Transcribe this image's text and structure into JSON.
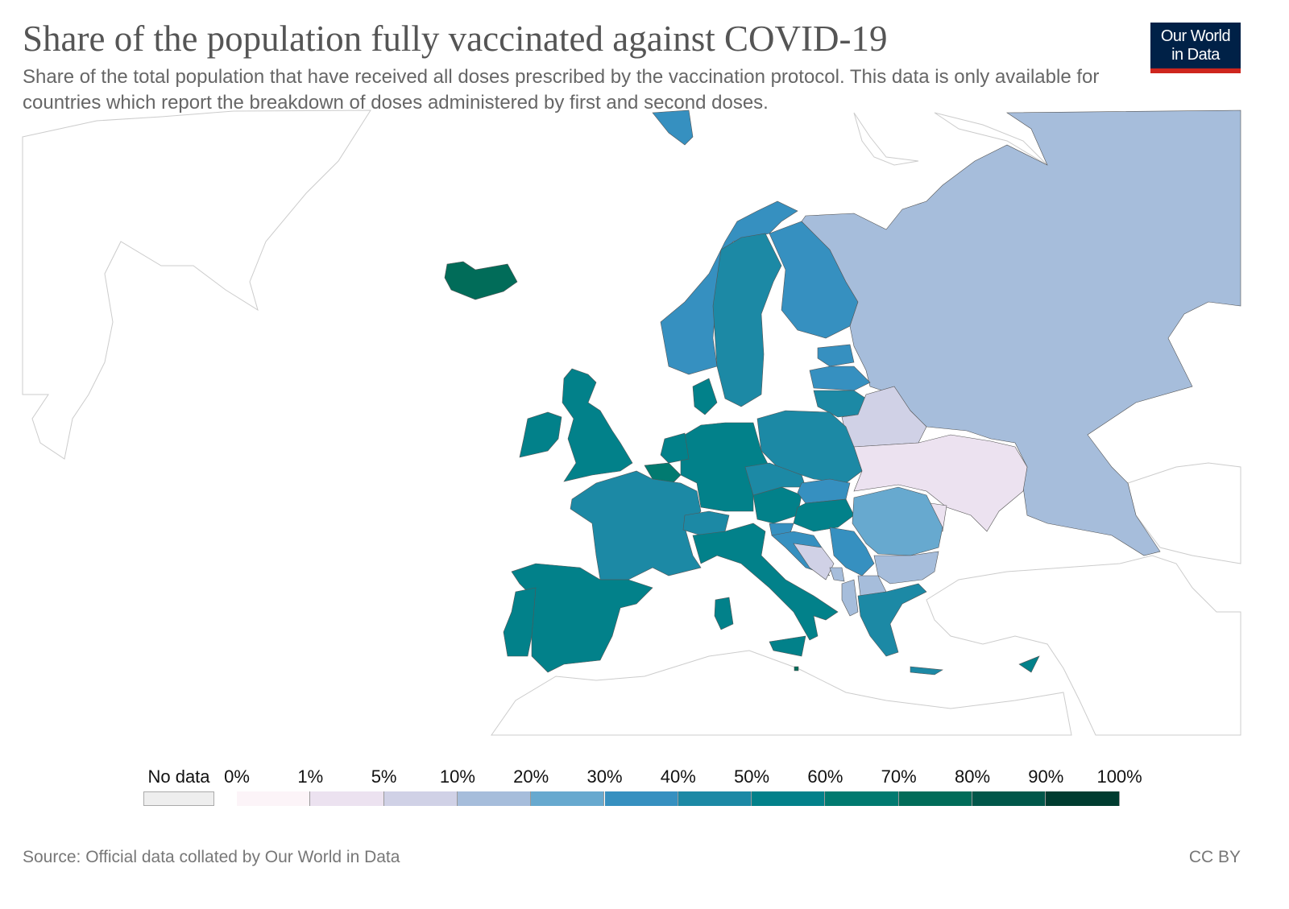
{
  "header": {
    "title": "Share of the population fully vaccinated against COVID-19",
    "subtitle": "Share of the total population that have received all doses prescribed by the vaccination protocol. This data is only available for countries which report the breakdown of doses administered by first and second doses.",
    "logo_line1": "Our World",
    "logo_line2": "in Data"
  },
  "chart_data": {
    "type": "map",
    "title": "Share of the population fully vaccinated against COVID-19",
    "region": "Europe",
    "unit": "%",
    "legend": {
      "no_data_label": "No data",
      "bins": [
        "0%",
        "1%",
        "5%",
        "10%",
        "20%",
        "30%",
        "40%",
        "50%",
        "60%",
        "70%",
        "80%",
        "90%",
        "100%"
      ],
      "thresholds": [
        0,
        1,
        5,
        10,
        20,
        30,
        40,
        50,
        60,
        70,
        80,
        90,
        100
      ],
      "colors": [
        "#fcf4f8",
        "#ece2f0",
        "#d0d1e6",
        "#a6bddb",
        "#67a9cf",
        "#3690c0",
        "#1c89a5",
        "#02818a",
        "#017a70",
        "#016c59",
        "#01574a",
        "#003c30"
      ],
      "no_data_color": "#eeeeee"
    },
    "values": {
      "Iceland": 72,
      "Norway": 35,
      "Sweden": 45,
      "Finland": 35,
      "Russia": 15,
      "Estonia": 35,
      "Latvia": 35,
      "Lithuania": 45,
      "Belarus": 8,
      "Ukraine": 3,
      "Moldova": 3,
      "Poland": 45,
      "Germany": 55,
      "Denmark": 55,
      "Netherlands": 55,
      "Belgium": 60,
      "United Kingdom": 55,
      "Ireland": 55,
      "France": 45,
      "Spain": 55,
      "Portugal": 55,
      "Switzerland": 45,
      "Italy": 55,
      "Austria": 55,
      "Czechia": 45,
      "Slovakia": 35,
      "Hungary": 55,
      "Slovenia": 35,
      "Croatia": 35,
      "Bosnia and Herzegovina": 8,
      "Serbia": 35,
      "Montenegro": 15,
      "North Macedonia": 15,
      "Albania": 15,
      "Romania": 25,
      "Bulgaria": 15,
      "Greece": 45,
      "Cyprus": 55,
      "Malta": 75
    }
  },
  "footer": {
    "source": "Source: Official data collated by Our World in Data",
    "license": "CC BY"
  }
}
